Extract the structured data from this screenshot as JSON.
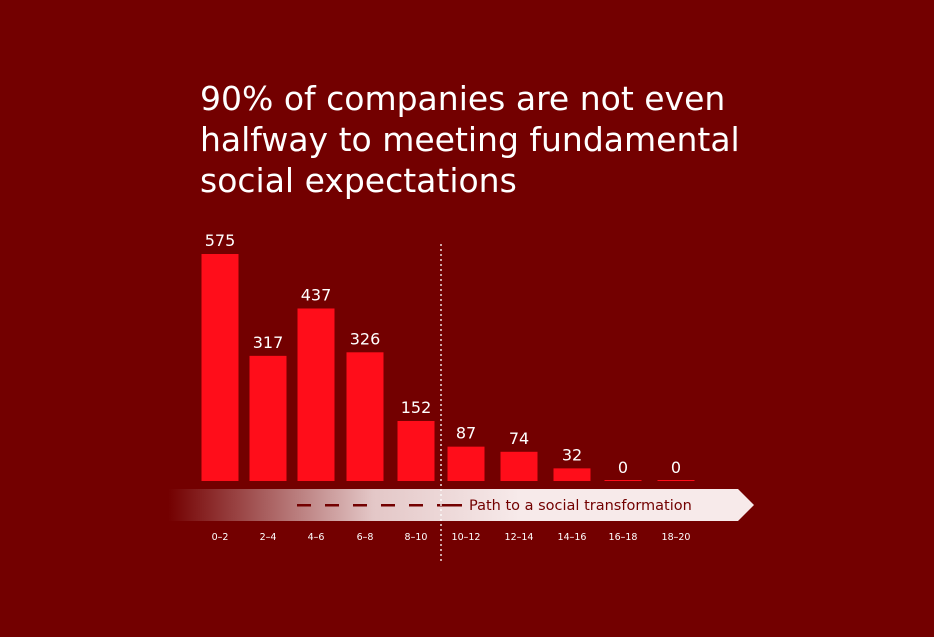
{
  "title_lines": [
    "90% of companies are not even",
    "halfway to meeting fundamental",
    "social expectations"
  ],
  "colors": {
    "background": "#730000",
    "bar": "#ff0d1a",
    "text": "#ffffff",
    "arrow_fill": "#f7eaea",
    "arrow_text": "#730000"
  },
  "chart_data": {
    "type": "bar",
    "title": "90% of companies are not even halfway to meeting fundamental social expectations",
    "categories": [
      "0–2",
      "2–4",
      "4–6",
      "6–8",
      "8–10",
      "10–12",
      "12–14",
      "14–16",
      "16–18",
      "18–20"
    ],
    "values": [
      575,
      317,
      437,
      326,
      152,
      87,
      74,
      32,
      0,
      0
    ],
    "xlabel": "",
    "ylabel": "",
    "ylim": [
      0,
      575
    ],
    "grid": false,
    "legend": "none",
    "data_labels": true,
    "annotation": {
      "text": "Path to a social transformation",
      "divider_after_category": "8–10"
    }
  }
}
